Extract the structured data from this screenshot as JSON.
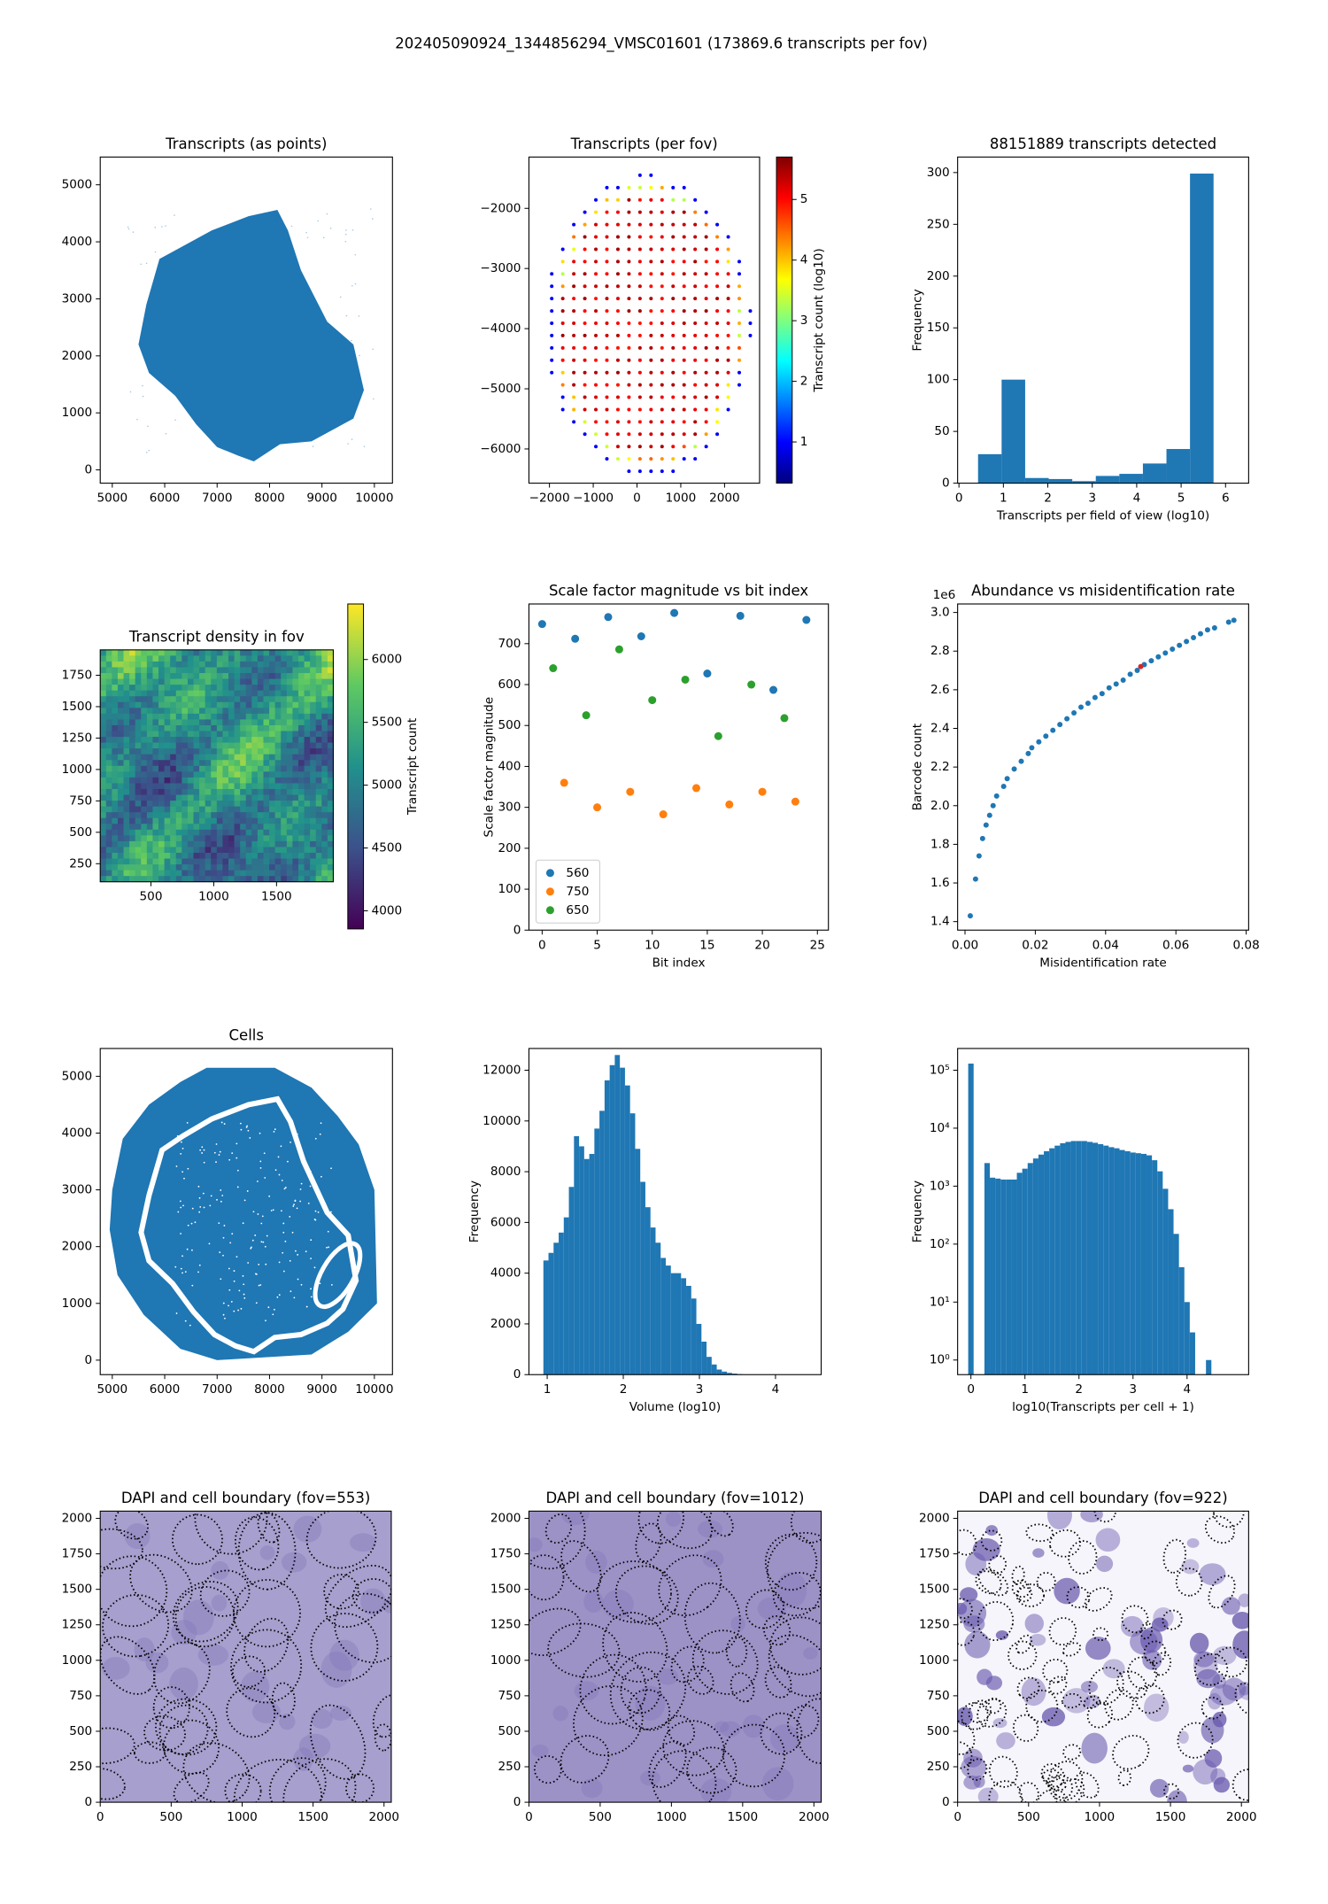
{
  "figure_title": "202405090924_1344856294_VMSC01601 (173869.6 transcripts per fov)",
  "chart_data": [
    {
      "type": "scatter",
      "title": "Transcripts (as points)",
      "color": "#1f77b4",
      "xlim": [
        4770,
        10345
      ],
      "xticks": [
        5000,
        6000,
        7000,
        8000,
        9000,
        10000
      ],
      "ylim": [
        -233,
        5487
      ],
      "yticks": [
        0,
        1000,
        2000,
        3000,
        4000,
        5000
      ]
    },
    {
      "type": "scatter",
      "title": "Transcripts (per fov)",
      "xlim": [
        -2469,
        2800
      ],
      "xticks": [
        {
          "value": -2000,
          "label": "−2000"
        },
        {
          "value": -1000,
          "label": "−1000"
        },
        0,
        1000,
        2000
      ],
      "ylim": [
        -6569,
        -1147
      ],
      "yticks": [
        {
          "value": -6000,
          "label": "−6000"
        },
        {
          "value": -5000,
          "label": "−5000"
        },
        {
          "value": -4000,
          "label": "−4000"
        },
        {
          "value": -3000,
          "label": "−3000"
        },
        {
          "value": -2000,
          "label": "−2000"
        }
      ],
      "colorbar": {
        "label": "Transcript count (log10)",
        "colormap": "jet",
        "lim": [
          0.32,
          5.7
        ],
        "ticks": [
          1,
          2,
          3,
          4,
          5
        ]
      }
    },
    {
      "type": "histogram",
      "title": "88151889 transcripts detected",
      "xlabel": "Transcripts per field of view (log10)",
      "ylabel": "Frequency",
      "color": "#1f77b4",
      "bins": [
        0.43,
        0.96,
        1.49,
        2.02,
        2.55,
        3.08,
        3.61,
        4.14,
        4.67,
        5.2,
        5.73
      ],
      "values": [
        28,
        100,
        5,
        4,
        2,
        7,
        9,
        19,
        33,
        299
      ],
      "xlim": [
        -0.03,
        6.52
      ],
      "xticks": [
        0,
        1,
        2,
        3,
        4,
        5,
        6
      ],
      "ylim": [
        0,
        315
      ],
      "yticks": [
        0,
        50,
        100,
        150,
        200,
        250,
        300
      ]
    },
    {
      "type": "heatmap",
      "title": "Transcript density in fov",
      "xlim": [
        96,
        1952
      ],
      "xticks": [
        500,
        1000,
        1500
      ],
      "ylim": [
        106,
        1952
      ],
      "yticks": [
        250,
        500,
        750,
        1000,
        1250,
        1500,
        1750
      ],
      "colorbar": {
        "label": "Transcript count",
        "colormap": "viridis",
        "lim": [
          3856,
          6442
        ],
        "ticks": [
          4000,
          4500,
          5000,
          5500,
          6000
        ]
      }
    },
    {
      "type": "scatter",
      "title": "Scale factor magnitude vs bit index",
      "xlabel": "Bit index",
      "ylabel": "Scale factor magnitude",
      "legend": "lower left",
      "series": [
        {
          "name": "560",
          "color": "#1f77b4",
          "x": [
            0,
            3,
            6,
            9,
            12,
            15,
            18,
            21,
            24
          ],
          "values": [
            748,
            712,
            765,
            718,
            775,
            627,
            768,
            587,
            758
          ]
        },
        {
          "name": "750",
          "color": "#ff7f0e",
          "x": [
            2,
            5,
            8,
            11,
            14,
            17,
            20,
            23
          ],
          "values": [
            360,
            300,
            338,
            283,
            347,
            307,
            338,
            314
          ]
        },
        {
          "name": "650",
          "color": "#2ca02c",
          "x": [
            1,
            4,
            7,
            10,
            13,
            16,
            19,
            22
          ],
          "values": [
            640,
            525,
            686,
            562,
            612,
            474,
            600,
            518
          ]
        }
      ],
      "xlim": [
        -1.2,
        26
      ],
      "xticks": [
        0,
        5,
        10,
        15,
        20,
        25
      ],
      "ylim": [
        0,
        797
      ],
      "yticks": [
        0,
        100,
        200,
        300,
        400,
        500,
        600,
        700
      ]
    },
    {
      "type": "scatter",
      "title": "Abundance vs misidentification rate",
      "xlabel": "Misidentification rate",
      "ylabel": "Barcode count",
      "y_offset_label": "1e6",
      "series": [
        {
          "color": "#1f77b4",
          "x": [
            0.0015,
            0.003,
            0.004,
            0.005,
            0.006,
            0.007,
            0.008,
            0.009,
            0.011,
            0.012,
            0.014,
            0.016,
            0.018,
            0.019,
            0.021,
            0.023,
            0.025,
            0.027,
            0.029,
            0.031,
            0.033,
            0.035,
            0.037,
            0.039,
            0.041,
            0.043,
            0.045,
            0.047,
            0.049,
            0.051,
            0.053,
            0.055,
            0.057,
            0.059,
            0.061,
            0.063,
            0.065,
            0.067,
            0.069,
            0.071,
            0.075,
            0.0765
          ],
          "values": [
            1.43,
            1.62,
            1.74,
            1.83,
            1.9,
            1.95,
            2.0,
            2.05,
            2.1,
            2.14,
            2.19,
            2.23,
            2.27,
            2.3,
            2.33,
            2.36,
            2.39,
            2.42,
            2.45,
            2.48,
            2.51,
            2.53,
            2.56,
            2.58,
            2.61,
            2.63,
            2.65,
            2.68,
            2.7,
            2.73,
            2.75,
            2.77,
            2.79,
            2.81,
            2.83,
            2.85,
            2.87,
            2.89,
            2.91,
            2.92,
            2.95,
            2.96
          ]
        },
        {
          "color": "#d62728",
          "x": [
            0.05
          ],
          "values": [
            2.72
          ]
        }
      ],
      "xlim": [
        -0.0021,
        0.0807
      ],
      "xticks": [
        {
          "value": 0,
          "label": "0.00"
        },
        0.02,
        0.04,
        0.06,
        0.08
      ],
      "ylim": [
        1.356,
        3.044
      ],
      "yticks": [
        1.4,
        1.6,
        1.8,
        {
          "value": 2,
          "label": "2.0"
        },
        2.2,
        2.4,
        2.6,
        2.8,
        {
          "value": 3,
          "label": "3.0"
        }
      ]
    },
    {
      "type": "scatter",
      "title": "Cells",
      "color": "#1f77b4",
      "xlim": [
        4770,
        10345
      ],
      "xticks": [
        5000,
        6000,
        7000,
        8000,
        9000,
        10000
      ],
      "ylim": [
        -255,
        5490
      ],
      "yticks": [
        0,
        1000,
        2000,
        3000,
        4000,
        5000
      ]
    },
    {
      "type": "histogram",
      "xlabel": "Volume (log10)",
      "ylabel": "Frequency",
      "color": "#1f77b4",
      "bins": [
        0.95,
        1.017,
        1.084,
        1.151,
        1.218,
        1.285,
        1.352,
        1.419,
        1.486,
        1.553,
        1.62,
        1.687,
        1.754,
        1.821,
        1.888,
        1.955,
        2.022,
        2.089,
        2.156,
        2.223,
        2.29,
        2.357,
        2.424,
        2.491,
        2.558,
        2.625,
        2.692,
        2.759,
        2.826,
        2.893,
        2.96,
        3.027,
        3.094,
        3.161,
        3.228,
        3.295,
        3.362,
        3.429,
        3.496,
        3.563,
        3.63,
        3.697,
        3.764,
        3.831,
        3.898,
        3.965,
        4.032,
        4.099,
        4.166,
        4.233,
        4.3
      ],
      "values": [
        4500,
        4800,
        5200,
        5600,
        6200,
        7400,
        9400,
        9000,
        8500,
        8700,
        9700,
        10400,
        11600,
        12200,
        12600,
        12100,
        11400,
        10300,
        8900,
        7600,
        6600,
        5800,
        5200,
        4600,
        4300,
        4000,
        4000,
        3800,
        3500,
        3000,
        2000,
        1300,
        700,
        400,
        200,
        120,
        70,
        40,
        20,
        10,
        5,
        3,
        2,
        1,
        1,
        1,
        0,
        0,
        0,
        1
      ],
      "xlim": [
        0.76,
        4.6
      ],
      "xticks": [
        1,
        2,
        3,
        4
      ],
      "ylim": [
        0,
        12857
      ],
      "yticks": [
        0,
        2000,
        4000,
        6000,
        8000,
        10000,
        12000
      ]
    },
    {
      "type": "histogram",
      "xlabel": "log10(Transcripts per cell + 1)",
      "ylabel": "Frequency",
      "color": "#1f77b4",
      "log_y": true,
      "bins": [
        -0.05,
        0.05,
        0.15,
        0.25,
        0.35,
        0.45,
        0.55,
        0.65,
        0.75,
        0.85,
        0.95,
        1.05,
        1.15,
        1.25,
        1.35,
        1.45,
        1.55,
        1.65,
        1.75,
        1.85,
        1.95,
        2.05,
        2.15,
        2.25,
        2.35,
        2.45,
        2.55,
        2.65,
        2.75,
        2.85,
        2.95,
        3.05,
        3.15,
        3.25,
        3.35,
        3.45,
        3.55,
        3.65,
        3.75,
        3.85,
        3.95,
        4.05,
        4.15,
        4.25,
        4.35,
        4.45
      ],
      "values": [
        130000,
        0,
        0,
        2500,
        1400,
        1350,
        1300,
        1300,
        1300,
        1700,
        2000,
        2500,
        3000,
        3500,
        4000,
        4500,
        5000,
        5500,
        5800,
        6000,
        6000,
        6000,
        5800,
        5600,
        5300,
        5000,
        4700,
        4500,
        4200,
        4000,
        3800,
        3700,
        3600,
        3400,
        2800,
        1800,
        900,
        400,
        150,
        40,
        10,
        3,
        0,
        0,
        1
      ],
      "xlim": [
        -0.246,
        5.14
      ],
      "xticks": [
        0,
        1,
        2,
        3,
        4
      ],
      "ylim": [
        0.56,
        237000
      ],
      "yticks": [
        {
          "value": 1,
          "label": "10⁰"
        },
        {
          "value": 10,
          "label": "10¹"
        },
        {
          "value": 100,
          "label": "10²"
        },
        {
          "value": 1000,
          "label": "10³"
        },
        {
          "value": 10000,
          "label": "10⁴"
        },
        {
          "value": 100000,
          "label": "10⁵"
        }
      ]
    },
    {
      "type": "image",
      "title": "DAPI and cell boundary (fov=553)",
      "xlim": [
        0,
        2051
      ],
      "xticks": [
        0,
        500,
        1000,
        1500,
        2000
      ],
      "ylim": [
        0,
        2051
      ],
      "yticks": [
        0,
        250,
        500,
        750,
        1000,
        1250,
        1500,
        1750,
        2000
      ]
    },
    {
      "type": "image",
      "title": "DAPI and cell boundary (fov=1012)",
      "xlim": [
        0,
        2051
      ],
      "xticks": [
        0,
        500,
        1000,
        1500,
        2000
      ],
      "ylim": [
        0,
        2051
      ],
      "yticks": [
        0,
        250,
        500,
        750,
        1000,
        1250,
        1500,
        1750,
        2000
      ]
    },
    {
      "type": "image",
      "title": "DAPI and cell boundary (fov=922)",
      "xlim": [
        0,
        2051
      ],
      "xticks": [
        0,
        500,
        1000,
        1500,
        2000
      ],
      "ylim": [
        0,
        2051
      ],
      "yticks": [
        0,
        250,
        500,
        750,
        1000,
        1250,
        1500,
        1750,
        2000
      ]
    }
  ]
}
